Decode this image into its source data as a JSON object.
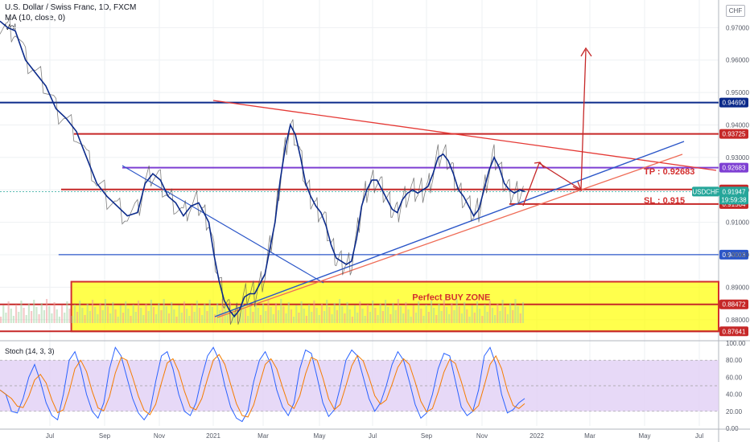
{
  "header": {
    "title": "U.S. Dollar / Swiss Franc, 1D, FXCM",
    "ma_label": "MA (10, close, 0)",
    "vol_label": "Vol",
    "stoch_label": "Stoch (14, 3, 3)",
    "currency": "CHF"
  },
  "colors": {
    "price": "#555555",
    "ma": "#0b2a8a",
    "support": "#c62828",
    "resistance_top": "#0b2a8a",
    "purple": "#7e3fd3",
    "blue_trend": "#2b56c8",
    "zone_fill": "#ffff00",
    "stoch_k": "#2962ff",
    "stoch_d": "#f57c00",
    "stoch_bg": "#e1d0f5"
  },
  "chart_data": {
    "type": "line",
    "symbol": "USDCHF",
    "x_ticks": [
      "Jul",
      "Sep",
      "Nov",
      "2021",
      "Mar",
      "May",
      "Jul",
      "Sep",
      "Nov",
      "2022",
      "Mar",
      "May",
      "Jul"
    ],
    "y_ticks": [
      "0.97000",
      "0.96000",
      "0.95000",
      "0.94000",
      "0.93000",
      "0.92000",
      "0.91000",
      "0.90000",
      "0.89000",
      "0.88000"
    ],
    "ylim": [
      0.8745,
      0.9785
    ],
    "price_path": [
      [
        0,
        0.972
      ],
      [
        3,
        0.97
      ],
      [
        6,
        0.969
      ],
      [
        10,
        0.96
      ],
      [
        14,
        0.956
      ],
      [
        18,
        0.952
      ],
      [
        22,
        0.945
      ],
      [
        26,
        0.942
      ],
      [
        30,
        0.938
      ],
      [
        34,
        0.93
      ],
      [
        38,
        0.922
      ],
      [
        42,
        0.918
      ],
      [
        46,
        0.915
      ],
      [
        50,
        0.912
      ],
      [
        54,
        0.913
      ],
      [
        57,
        0.922
      ],
      [
        60,
        0.925
      ],
      [
        63,
        0.923
      ],
      [
        66,
        0.918
      ],
      [
        69,
        0.916
      ],
      [
        72,
        0.912
      ],
      [
        75,
        0.915
      ],
      [
        78,
        0.916
      ],
      [
        80,
        0.913
      ],
      [
        82,
        0.91
      ],
      [
        84,
        0.9
      ],
      [
        86,
        0.892
      ],
      [
        88,
        0.886
      ],
      [
        90,
        0.883
      ],
      [
        92,
        0.881
      ],
      [
        94,
        0.883
      ],
      [
        96,
        0.887
      ],
      [
        98,
        0.888
      ],
      [
        100,
        0.888
      ],
      [
        102,
        0.891
      ],
      [
        104,
        0.894
      ],
      [
        106,
        0.902
      ],
      [
        108,
        0.91
      ],
      [
        110,
        0.923
      ],
      [
        112,
        0.933
      ],
      [
        114,
        0.94
      ],
      [
        116,
        0.937
      ],
      [
        118,
        0.93
      ],
      [
        120,
        0.922
      ],
      [
        122,
        0.918
      ],
      [
        124,
        0.915
      ],
      [
        126,
        0.913
      ],
      [
        128,
        0.909
      ],
      [
        130,
        0.903
      ],
      [
        132,
        0.899
      ],
      [
        134,
        0.898
      ],
      [
        136,
        0.897
      ],
      [
        138,
        0.898
      ],
      [
        140,
        0.905
      ],
      [
        142,
        0.915
      ],
      [
        144,
        0.92
      ],
      [
        146,
        0.923
      ],
      [
        148,
        0.923
      ],
      [
        150,
        0.92
      ],
      [
        152,
        0.917
      ],
      [
        154,
        0.914
      ],
      [
        156,
        0.913
      ],
      [
        158,
        0.917
      ],
      [
        160,
        0.919
      ],
      [
        162,
        0.92
      ],
      [
        164,
        0.919
      ],
      [
        166,
        0.92
      ],
      [
        168,
        0.921
      ],
      [
        170,
        0.925
      ],
      [
        172,
        0.93
      ],
      [
        174,
        0.931
      ],
      [
        176,
        0.929
      ],
      [
        178,
        0.925
      ],
      [
        180,
        0.92
      ],
      [
        182,
        0.918
      ],
      [
        184,
        0.915
      ],
      [
        186,
        0.912
      ],
      [
        188,
        0.914
      ],
      [
        190,
        0.92
      ],
      [
        192,
        0.926
      ],
      [
        194,
        0.93
      ],
      [
        196,
        0.927
      ],
      [
        198,
        0.922
      ],
      [
        200,
        0.92
      ],
      [
        202,
        0.919
      ],
      [
        204,
        0.92
      ],
      [
        206,
        0.9195
      ]
    ],
    "levels": [
      {
        "value": 0.9469,
        "label": "0.94690",
        "color": "#0b2a8a",
        "x_from": 0
      },
      {
        "value": 0.93725,
        "label": "0.93725",
        "color": "#c62828",
        "x_from": 29
      },
      {
        "value": 0.92683,
        "label": "0.92683",
        "color": "#7e3fd3",
        "x_from": 48
      },
      {
        "value": 0.92013,
        "label": "0.92013",
        "color": "#c62828",
        "x_from": 24
      },
      {
        "value": 0.91564,
        "label": "0.91564",
        "color": "#c62828",
        "x_from": 200
      },
      {
        "value": 0.90003,
        "label": "0.90003",
        "color": "#2b56c8",
        "x_from": 23
      },
      {
        "value": 0.88472,
        "label": "0.88472",
        "color": "#c62828",
        "x_from": 0
      },
      {
        "value": 0.87641,
        "label": "0.87641",
        "color": "#c62828",
        "x_from": 0
      }
    ],
    "current_price": {
      "symbol": "USDCHF",
      "value": "0.91947",
      "countdown": "19:59:38"
    },
    "buy_zone": {
      "label": "Perfect BUY ZONE",
      "y_top": 0.8917,
      "y_bottom": 0.8764,
      "x_from": 28
    },
    "tp_label": "TP : 0.92683",
    "sl_label": "SL : 0.915",
    "stoch": {
      "y_ticks": [
        "100.00",
        "80.00",
        "60.00",
        "40.00",
        "20.00",
        "0.00"
      ],
      "ylim": [
        0,
        100
      ],
      "band": [
        20,
        80
      ],
      "k_values": [
        45,
        40,
        20,
        18,
        35,
        60,
        75,
        55,
        30,
        15,
        10,
        40,
        80,
        90,
        70,
        40,
        20,
        12,
        30,
        70,
        95,
        85,
        60,
        35,
        18,
        10,
        20,
        55,
        85,
        90,
        70,
        40,
        20,
        15,
        30,
        60,
        85,
        95,
        80,
        50,
        25,
        12,
        8,
        20,
        55,
        80,
        90,
        75,
        45,
        25,
        15,
        30,
        70,
        92,
        88,
        60,
        30,
        14,
        22,
        48,
        80,
        92,
        85,
        60,
        35,
        20,
        30,
        50,
        75,
        90,
        80,
        55,
        28,
        12,
        18,
        40,
        70,
        88,
        85,
        55,
        25,
        15,
        20,
        45,
        85,
        95,
        75,
        40,
        18,
        22,
        30,
        35
      ]
    }
  }
}
